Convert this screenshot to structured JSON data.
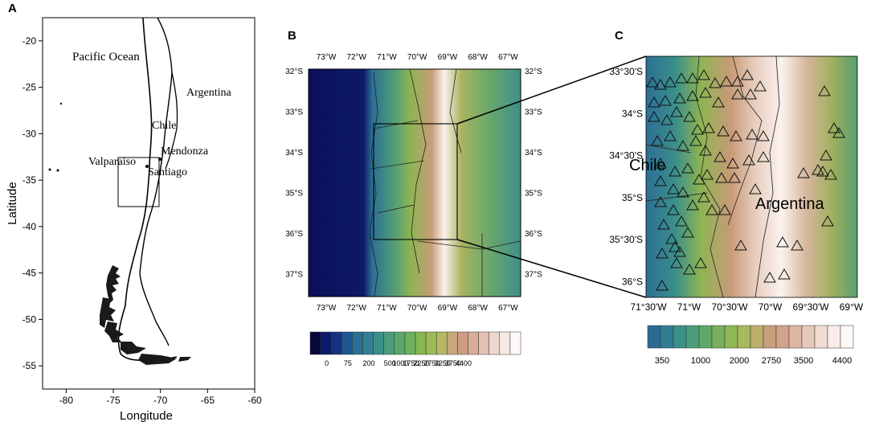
{
  "panels": {
    "a": {
      "letter": "A",
      "xlabel": "Longitude",
      "ylabel": "Latitude",
      "xticks": [
        -80,
        -75,
        -70,
        -65,
        -60
      ],
      "yticks": [
        -20,
        -25,
        -30,
        -35,
        -40,
        -45,
        -50,
        -55
      ],
      "place_labels": {
        "ocean": "Pacific Ocean",
        "chile": "Chile",
        "argentina": "Argentina",
        "mendonza": "Mendonza",
        "valparaiso": "Valparaiso",
        "santiago": "Santiago"
      }
    },
    "b": {
      "letter": "B",
      "top_ticks": [
        "73°W",
        "72°W",
        "71°W",
        "70°W",
        "69°W",
        "68°W",
        "67°W"
      ],
      "bottom_ticks": [
        "73°W",
        "72°W",
        "71°W",
        "70°W",
        "69°W",
        "68°W",
        "67°W"
      ],
      "lat_ticks": [
        "32°S",
        "33°S",
        "34°S",
        "35°S",
        "36°S",
        "37°S"
      ],
      "colorbar_labels": [
        "0",
        "75",
        "200",
        "500",
        "1000",
        "1750",
        "2250",
        "2750",
        "3250",
        "3750",
        "4400"
      ]
    },
    "c": {
      "letter": "C",
      "lat_ticks": [
        "33°30'S",
        "34°S",
        "34°30'S",
        "35°S",
        "35°30'S",
        "36°S"
      ],
      "lon_ticks": [
        "71°30'W",
        "71°W",
        "70°30'W",
        "70°W",
        "69°30'W",
        "69°W"
      ],
      "country_labels": {
        "chile": "Chile",
        "argentina": "Argentina"
      },
      "colorbar_labels": [
        "350",
        "1000",
        "2000",
        "2750",
        "3500",
        "4400"
      ]
    }
  },
  "colors": {
    "ocean_deep": "#0b0f5a",
    "lowland": "#2f7f9a",
    "midland": "#7fae55",
    "highland": "#c89a78",
    "peak": "#fbf3ee"
  }
}
